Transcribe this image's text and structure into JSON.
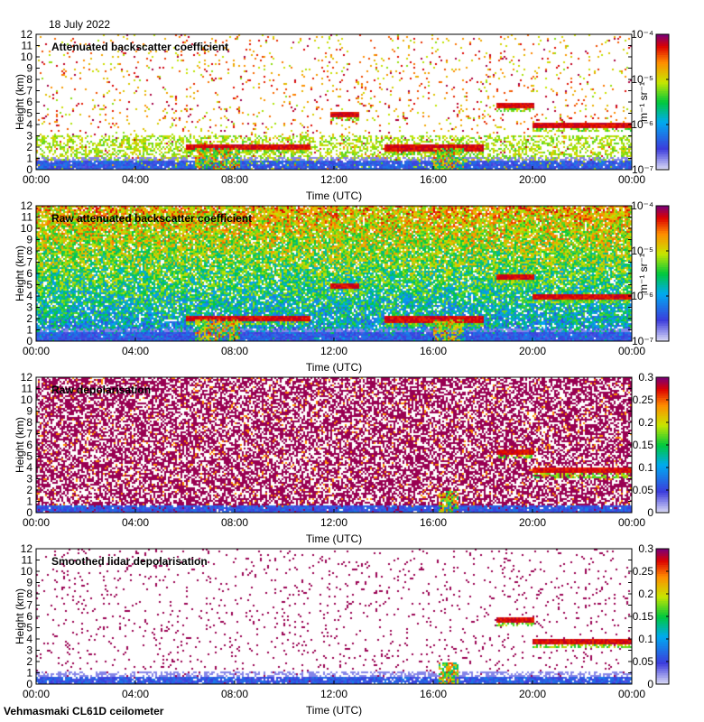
{
  "date_label": "18 July 2022",
  "footer": "Vehmasmaki CL61D ceilometer",
  "chart_data": [
    {
      "type": "heatmap",
      "title": "Attenuated backscatter coefficient",
      "xlabel": "Time (UTC)",
      "ylabel": "Height (km)",
      "x_ticks": [
        "00:00",
        "04:00",
        "08:00",
        "12:00",
        "16:00",
        "20:00",
        "00:00"
      ],
      "y_ticks": [
        "0",
        "1",
        "2",
        "3",
        "4",
        "5",
        "6",
        "7",
        "8",
        "9",
        "10",
        "11",
        "12"
      ],
      "ylim": [
        0,
        12
      ],
      "colorbar": {
        "scale": "log",
        "unit_label": "m⁻¹ sr⁻¹",
        "ticks": [
          "10⁻⁷",
          "10⁻⁶",
          "10⁻⁵",
          "10⁻⁴"
        ],
        "range": [
          1e-07,
          0.0001
        ]
      },
      "features": {
        "noise": 0.06,
        "fill": "clear",
        "boundary_layer_km": 0.5,
        "cloud_layers": [
          [
            6,
            11,
            2.1
          ],
          [
            11.8,
            13,
            5.0
          ],
          [
            14,
            18,
            2.0
          ],
          [
            18.5,
            20,
            5.8
          ],
          [
            20,
            24,
            4.0
          ]
        ],
        "rain_shafts": [
          [
            6.4,
            8.2
          ],
          [
            16,
            17.2
          ]
        ]
      }
    },
    {
      "type": "heatmap",
      "title": "Raw attenuated backscatter coefficient",
      "xlabel": "Time (UTC)",
      "ylabel": "Height (km)",
      "x_ticks": [
        "00:00",
        "04:00",
        "08:00",
        "12:00",
        "16:00",
        "20:00",
        "00:00"
      ],
      "y_ticks": [
        "0",
        "1",
        "2",
        "3",
        "4",
        "5",
        "6",
        "7",
        "8",
        "9",
        "10",
        "11",
        "12"
      ],
      "ylim": [
        0,
        12
      ],
      "colorbar": {
        "scale": "log",
        "unit_label": "m⁻¹ sr⁻¹",
        "ticks": [
          "10⁻⁷",
          "10⁻⁶",
          "10⁻⁵",
          "10⁻⁴"
        ],
        "range": [
          1e-07,
          0.0001
        ]
      },
      "features": {
        "noise": 1.0,
        "fill": "noisy",
        "boundary_layer_km": 0.5,
        "cloud_layers": [
          [
            6,
            11,
            2.1
          ],
          [
            11.8,
            13,
            5.0
          ],
          [
            14,
            18,
            2.0
          ],
          [
            18.5,
            20,
            5.8
          ],
          [
            20,
            24,
            4.0
          ]
        ],
        "rain_shafts": [
          [
            6.4,
            8.2
          ],
          [
            16,
            17.2
          ]
        ]
      }
    },
    {
      "type": "heatmap",
      "title": "Raw depolarisation",
      "xlabel": "Time (UTC)",
      "ylabel": "Height (km)",
      "x_ticks": [
        "00:00",
        "04:00",
        "08:00",
        "12:00",
        "16:00",
        "20:00",
        "00:00"
      ],
      "y_ticks": [
        "0",
        "1",
        "2",
        "3",
        "4",
        "5",
        "6",
        "7",
        "8",
        "9",
        "10",
        "11",
        "12"
      ],
      "ylim": [
        0,
        12
      ],
      "colorbar": {
        "scale": "linear",
        "unit_label": "",
        "ticks": [
          "0",
          "0.05",
          "0.1",
          "0.15",
          "0.2",
          "0.25",
          "0.3"
        ],
        "range": [
          0,
          0.3
        ]
      },
      "features": {
        "noise": 0.75,
        "fill": "purple",
        "boundary_layer_km": 0.4,
        "cloud_layers": [
          [
            18.5,
            20,
            5.5
          ],
          [
            20,
            24,
            3.8
          ]
        ],
        "rain_shafts": [
          [
            16.2,
            17
          ]
        ]
      }
    },
    {
      "type": "heatmap",
      "title": "Smoothed lidar depolarisation",
      "xlabel": "Time (UTC)",
      "ylabel": "Height (km)",
      "x_ticks": [
        "00:00",
        "04:00",
        "08:00",
        "12:00",
        "16:00",
        "20:00",
        "00:00"
      ],
      "y_ticks": [
        "0",
        "1",
        "2",
        "3",
        "4",
        "5",
        "6",
        "7",
        "8",
        "9",
        "10",
        "11",
        "12"
      ],
      "ylim": [
        0,
        12
      ],
      "colorbar": {
        "scale": "linear",
        "unit_label": "",
        "ticks": [
          "0",
          "0.05",
          "0.1",
          "0.15",
          "0.2",
          "0.25",
          "0.3"
        ],
        "range": [
          0,
          0.3
        ]
      },
      "features": {
        "noise": 0.05,
        "fill": "sparse",
        "boundary_layer_km": 0.4,
        "cloud_layers": [
          [
            18.5,
            20,
            5.8
          ],
          [
            20,
            24,
            3.9
          ]
        ],
        "rain_shafts": [
          [
            16.2,
            17
          ]
        ]
      }
    }
  ]
}
